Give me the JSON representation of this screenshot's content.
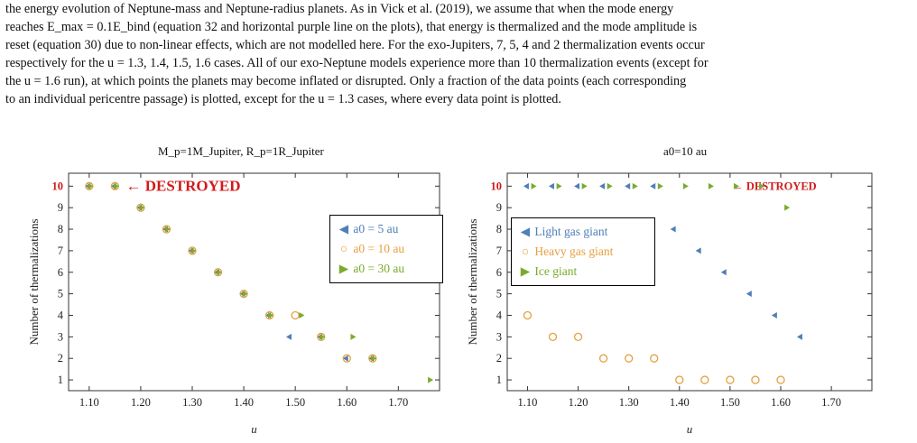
{
  "paragraph": {
    "lines": [
      "the energy evolution of Neptune-mass and Neptune-radius planets. As in Vick et al. (2019), we assume that when the mode energy",
      "reaches E_max = 0.1E_bind (equation 32 and horizontal purple line on the plots), that energy is thermalized and the mode amplitude is",
      "reset (equation 30) due to non-linear effects, which are not modelled here. For the exo-Jupiters, 7, 5, 4 and 2 thermalization events occur",
      "respectively for the u = 1.3, 1.4, 1.5, 1.6 cases. All of our exo-Neptune models experience more than 10 thermalization events (except for",
      "the u = 1.6 run), at which points the planets may become inflated or disrupted. Only a fraction of the data points (each corresponding",
      "to an individual pericentre passage) is plotted, except for the u = 1.3 cases, where every data point is plotted."
    ]
  },
  "chart_data": [
    {
      "type": "scatter",
      "title": "M_p=1M_Jupiter, R_p=1R_Jupiter",
      "xlabel": "u",
      "ylabel": "Number of thermalizations",
      "xlim": [
        1.06,
        1.78
      ],
      "ylim": [
        0.5,
        10.6
      ],
      "xticks": [
        "1.10",
        "1.20",
        "1.30",
        "1.40",
        "1.50",
        "1.60",
        "1.70"
      ],
      "yticks": [
        "1",
        "2",
        "3",
        "4",
        "5",
        "6",
        "7",
        "8",
        "9",
        "10"
      ],
      "annotation": "← DESTROYED",
      "legend_position": "right-middle",
      "series": [
        {
          "name": "a0 = 5 au",
          "marker": "triangle-left",
          "color": "#4f7fb8",
          "points": [
            [
              1.1,
              10
            ],
            [
              1.15,
              10
            ],
            [
              1.2,
              9
            ],
            [
              1.25,
              8
            ],
            [
              1.3,
              7
            ],
            [
              1.35,
              6
            ],
            [
              1.4,
              5
            ],
            [
              1.45,
              4
            ],
            [
              1.49,
              3
            ],
            [
              1.55,
              3
            ],
            [
              1.6,
              2
            ],
            [
              1.65,
              2
            ]
          ]
        },
        {
          "name": "a0 = 10 au",
          "marker": "circle-open",
          "color": "#e5a040",
          "points": [
            [
              1.1,
              10
            ],
            [
              1.15,
              10
            ],
            [
              1.2,
              9
            ],
            [
              1.25,
              8
            ],
            [
              1.3,
              7
            ],
            [
              1.35,
              6
            ],
            [
              1.4,
              5
            ],
            [
              1.45,
              4
            ],
            [
              1.5,
              4
            ],
            [
              1.55,
              3
            ],
            [
              1.6,
              2
            ],
            [
              1.65,
              2
            ]
          ]
        },
        {
          "name": "a0 = 30 au",
          "marker": "triangle-right",
          "color": "#7aab2e",
          "points": [
            [
              1.1,
              10
            ],
            [
              1.15,
              10
            ],
            [
              1.2,
              9
            ],
            [
              1.25,
              8
            ],
            [
              1.3,
              7
            ],
            [
              1.35,
              6
            ],
            [
              1.4,
              5
            ],
            [
              1.45,
              4
            ],
            [
              1.51,
              4
            ],
            [
              1.55,
              3
            ],
            [
              1.61,
              3
            ],
            [
              1.65,
              2
            ],
            [
              1.76,
              1
            ]
          ]
        }
      ]
    },
    {
      "type": "scatter",
      "title": "a0=10 au",
      "xlabel": "u",
      "ylabel": "Number of thermalizations",
      "xlim": [
        1.06,
        1.78
      ],
      "ylim": [
        0.5,
        10.6
      ],
      "xticks": [
        "1.10",
        "1.20",
        "1.30",
        "1.40",
        "1.50",
        "1.60",
        "1.70"
      ],
      "yticks": [
        "1",
        "2",
        "3",
        "4",
        "5",
        "6",
        "7",
        "8",
        "9",
        "10"
      ],
      "annotation": "← DESTROYED",
      "legend_position": "left-middle",
      "series": [
        {
          "name": "Light gas giant",
          "marker": "triangle-left",
          "color": "#4f7fb8",
          "points": [
            [
              1.1,
              10
            ],
            [
              1.15,
              10
            ],
            [
              1.2,
              10
            ],
            [
              1.25,
              10
            ],
            [
              1.3,
              10
            ],
            [
              1.35,
              10
            ],
            [
              1.39,
              8
            ],
            [
              1.44,
              7
            ],
            [
              1.49,
              6
            ],
            [
              1.54,
              5
            ],
            [
              1.59,
              4
            ],
            [
              1.64,
              3
            ]
          ]
        },
        {
          "name": "Heavy gas giant",
          "marker": "circle-open",
          "color": "#e5a040",
          "points": [
            [
              1.1,
              4
            ],
            [
              1.15,
              3
            ],
            [
              1.2,
              3
            ],
            [
              1.25,
              2
            ],
            [
              1.3,
              2
            ],
            [
              1.35,
              2
            ],
            [
              1.4,
              1
            ],
            [
              1.45,
              1
            ],
            [
              1.5,
              1
            ],
            [
              1.55,
              1
            ],
            [
              1.6,
              1
            ]
          ]
        },
        {
          "name": "Ice giant",
          "marker": "triangle-right",
          "color": "#7aab2e",
          "points": [
            [
              1.11,
              10
            ],
            [
              1.16,
              10
            ],
            [
              1.21,
              10
            ],
            [
              1.26,
              10
            ],
            [
              1.31,
              10
            ],
            [
              1.36,
              10
            ],
            [
              1.41,
              10
            ],
            [
              1.46,
              10
            ],
            [
              1.51,
              10
            ],
            [
              1.56,
              10
            ],
            [
              1.61,
              9
            ]
          ]
        }
      ]
    }
  ]
}
